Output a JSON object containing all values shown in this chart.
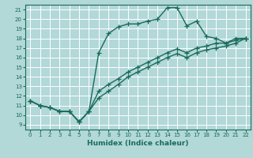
{
  "xlabel": "Humidex (Indice chaleur)",
  "xlim": [
    -0.5,
    22.5
  ],
  "ylim": [
    8.5,
    21.5
  ],
  "xticks": [
    0,
    1,
    2,
    3,
    4,
    5,
    6,
    7,
    8,
    9,
    10,
    11,
    12,
    13,
    14,
    15,
    16,
    17,
    18,
    19,
    20,
    21,
    22
  ],
  "yticks": [
    9,
    10,
    11,
    12,
    13,
    14,
    15,
    16,
    17,
    18,
    19,
    20,
    21
  ],
  "bg_color": "#b2d8d8",
  "grid_color": "#ffffff",
  "line_color": "#1a6b5a",
  "line_width": 1.0,
  "marker": "+",
  "marker_size": 4,
  "curves": [
    {
      "x": [
        0,
        1,
        2,
        3,
        4,
        5,
        6,
        7,
        8,
        9,
        10,
        11,
        12,
        13,
        14,
        15,
        16,
        17,
        18,
        19,
        20,
        21,
        22
      ],
      "y": [
        11.5,
        11.0,
        10.8,
        10.4,
        10.4,
        9.3,
        10.4,
        16.5,
        18.5,
        19.2,
        19.5,
        19.5,
        19.8,
        20.0,
        21.2,
        21.2,
        19.3,
        19.8,
        18.2,
        18.0,
        17.5,
        18.0,
        18.0
      ]
    },
    {
      "x": [
        0,
        1,
        2,
        3,
        4,
        5,
        6,
        7,
        8,
        9,
        10,
        11,
        12,
        13,
        14,
        15,
        16,
        17,
        18,
        19,
        20,
        21,
        22
      ],
      "y": [
        11.5,
        11.0,
        10.8,
        10.4,
        10.4,
        9.3,
        10.4,
        12.5,
        13.2,
        13.8,
        14.5,
        15.0,
        15.5,
        16.0,
        16.5,
        16.9,
        16.5,
        17.0,
        17.2,
        17.5,
        17.5,
        17.8,
        18.0
      ]
    },
    {
      "x": [
        0,
        1,
        2,
        3,
        4,
        5,
        6,
        7,
        8,
        9,
        10,
        11,
        12,
        13,
        14,
        15,
        16,
        17,
        18,
        19,
        20,
        21,
        22
      ],
      "y": [
        11.5,
        11.0,
        10.8,
        10.4,
        10.4,
        9.3,
        10.4,
        11.8,
        12.5,
        13.2,
        14.0,
        14.5,
        15.0,
        15.5,
        16.0,
        16.4,
        16.0,
        16.5,
        16.8,
        17.0,
        17.2,
        17.5,
        18.0
      ]
    }
  ]
}
